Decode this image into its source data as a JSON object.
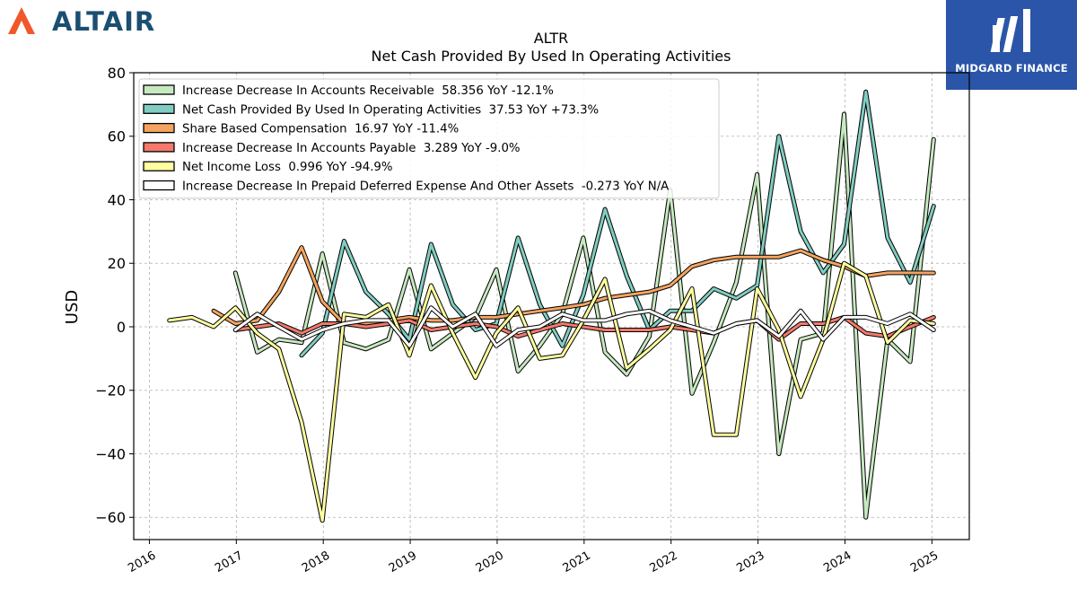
{
  "logos": {
    "left": "ALTAIR",
    "right": "MIDGARD FINANCE"
  },
  "colors": {
    "altair_orange": "#f0572a",
    "altair_text": "#1b4f72",
    "midgard_bg": "#2b55a8"
  },
  "chart_data": {
    "type": "line",
    "title": "ALTR",
    "subtitle": "Net Cash Provided By Used In Operating Activities",
    "ylabel": "USD",
    "xlabel": "",
    "ylim": [
      -67,
      80
    ],
    "xlim": [
      2015.82,
      2025.43
    ],
    "yticks": [
      80,
      60,
      40,
      20,
      0,
      -20,
      -40,
      -60
    ],
    "ytick_labels": [
      "80",
      "60",
      "40",
      "20",
      "0",
      "−20",
      "−40",
      "−60"
    ],
    "xticks": [
      2016,
      2017,
      2018,
      2019,
      2020,
      2021,
      2022,
      2023,
      2024,
      2025
    ],
    "xtick_labels": [
      "2016",
      "2017",
      "2018",
      "2019",
      "2020",
      "2021",
      "2022",
      "2023",
      "2024",
      "2025"
    ],
    "grid": true,
    "legend_position": "top-left",
    "series": [
      {
        "name": "Increase Decrease In Accounts Receivable",
        "legend": "Increase Decrease In Accounts Receivable  58.356 YoY -12.1%",
        "color": "#c7e9c0",
        "x": [
          2016.99,
          2017.24,
          2017.49,
          2017.75,
          2017.99,
          2018.24,
          2018.49,
          2018.75,
          2018.99,
          2019.24,
          2019.49,
          2019.75,
          2019.99,
          2020.24,
          2020.49,
          2020.75,
          2020.99,
          2021.24,
          2021.49,
          2021.75,
          2021.99,
          2022.24,
          2022.49,
          2022.75,
          2022.99,
          2023.24,
          2023.49,
          2023.75,
          2023.99,
          2024.24,
          2024.49,
          2024.75,
          2025.02
        ],
        "y": [
          17,
          -8,
          -4,
          -5,
          23,
          -5,
          -7,
          -4,
          18,
          -7,
          -2,
          3,
          18,
          -14,
          -6,
          4,
          28,
          -8,
          -15,
          -3,
          43,
          -21,
          -5,
          14,
          48,
          -40,
          -4,
          -2,
          67,
          -60,
          -4,
          -11,
          59
        ]
      },
      {
        "name": "Net Cash Provided By Used In Operating Activities",
        "legend": "Net Cash Provided By Used In Operating Activities  37.53 YoY +73.3%",
        "color": "#80cdc1",
        "x": [
          2017.75,
          2017.99,
          2018.24,
          2018.49,
          2018.75,
          2018.99,
          2019.24,
          2019.49,
          2019.75,
          2019.99,
          2020.24,
          2020.49,
          2020.75,
          2020.99,
          2021.24,
          2021.49,
          2021.75,
          2021.99,
          2022.24,
          2022.49,
          2022.75,
          2022.99,
          2023.24,
          2023.49,
          2023.75,
          2023.99,
          2024.24,
          2024.49,
          2024.75,
          2025.02
        ],
        "y": [
          -9,
          -2,
          27,
          11,
          4,
          -4,
          26,
          7,
          -1,
          1,
          28,
          7,
          -6,
          10,
          37,
          16,
          -1,
          5,
          5,
          12,
          9,
          13,
          60,
          30,
          17,
          26,
          74,
          28,
          14,
          38
        ]
      },
      {
        "name": "Share Based Compensation",
        "legend": "Share Based Compensation  16.97 YoY -11.4%",
        "color": "#f4a460",
        "x": [
          2016.74,
          2016.99,
          2017.24,
          2017.49,
          2017.75,
          2017.99,
          2018.24,
          2018.49,
          2018.75,
          2018.99,
          2019.24,
          2019.49,
          2019.75,
          2019.99,
          2020.24,
          2020.49,
          2020.75,
          2020.99,
          2021.24,
          2021.49,
          2021.75,
          2021.99,
          2022.24,
          2022.49,
          2022.75,
          2022.99,
          2023.24,
          2023.49,
          2023.75,
          2023.99,
          2024.24,
          2024.49,
          2024.75,
          2025.02
        ],
        "y": [
          5,
          1,
          2,
          11,
          25,
          8,
          1,
          1,
          2,
          3,
          2,
          2,
          3,
          3,
          4,
          5,
          6,
          7,
          9,
          10,
          11,
          13,
          19,
          21,
          22,
          22,
          22,
          24,
          21,
          19,
          16,
          17,
          17,
          16.97
        ]
      },
      {
        "name": "Increase Decrease In Accounts Payable",
        "legend": "Increase Decrease In Accounts Payable  3.289 YoY -9.0%",
        "color": "#f4796b",
        "x": [
          2016.99,
          2017.24,
          2017.49,
          2017.75,
          2017.99,
          2018.24,
          2018.49,
          2018.75,
          2018.99,
          2019.24,
          2019.49,
          2019.75,
          2019.99,
          2020.24,
          2020.49,
          2020.75,
          2020.99,
          2021.24,
          2021.49,
          2021.75,
          2021.99,
          2022.24,
          2022.49,
          2022.75,
          2022.99,
          2023.24,
          2023.49,
          2023.75,
          2023.99,
          2024.24,
          2024.49,
          2024.75,
          2025.02
        ],
        "y": [
          -1,
          0,
          1,
          -2,
          1,
          1,
          0,
          1,
          2,
          -1,
          0,
          1,
          0,
          -3,
          -1,
          1,
          0,
          -1,
          -1,
          -1,
          0,
          -1,
          -2,
          1,
          2,
          -4,
          1,
          1,
          3,
          -2,
          -3,
          0,
          3
        ]
      },
      {
        "name": "Net Income Loss",
        "legend": "Net Income Loss  0.996 YoY -94.9%",
        "color": "#ffffa0",
        "x": [
          2016.23,
          2016.49,
          2016.74,
          2016.99,
          2017.24,
          2017.49,
          2017.75,
          2017.99,
          2018.24,
          2018.49,
          2018.75,
          2018.99,
          2019.24,
          2019.49,
          2019.75,
          2019.99,
          2020.24,
          2020.49,
          2020.75,
          2020.99,
          2021.24,
          2021.49,
          2021.75,
          2021.99,
          2022.24,
          2022.49,
          2022.75,
          2022.99,
          2023.24,
          2023.49,
          2023.75,
          2023.99,
          2024.24,
          2024.49,
          2024.75,
          2025.02
        ],
        "y": [
          2,
          3,
          0,
          6,
          -2,
          -7,
          -30,
          -61,
          4,
          3,
          7,
          -9,
          13,
          -2,
          -16,
          -2,
          6,
          -10,
          -9,
          2,
          15,
          -13,
          -7,
          -1,
          12,
          -34,
          -34,
          12,
          -1,
          -22,
          -4,
          20,
          16,
          -5,
          2,
          1
        ]
      },
      {
        "name": "Increase Decrease In Prepaid Deferred Expense And Other Assets",
        "legend": "Increase Decrease In Prepaid Deferred Expense And Other Assets  -0.273 YoY N/A",
        "color": "#ffffff",
        "x": [
          2016.99,
          2017.24,
          2017.49,
          2017.75,
          2017.99,
          2018.24,
          2018.49,
          2018.75,
          2018.99,
          2019.24,
          2019.49,
          2019.75,
          2019.99,
          2020.24,
          2020.49,
          2020.75,
          2020.99,
          2021.24,
          2021.49,
          2021.75,
          2021.99,
          2022.24,
          2022.49,
          2022.75,
          2022.99,
          2023.24,
          2023.49,
          2023.75,
          2023.99,
          2024.24,
          2024.49,
          2024.75,
          2025.02
        ],
        "y": [
          -1,
          4,
          0,
          -4,
          -1,
          1,
          2,
          2,
          -6,
          6,
          0,
          4,
          -6,
          -1,
          0,
          4,
          2,
          2,
          4,
          5,
          2,
          0,
          -2,
          1,
          2,
          -3,
          5,
          -4,
          3,
          3,
          1,
          4,
          -1
        ]
      }
    ]
  }
}
